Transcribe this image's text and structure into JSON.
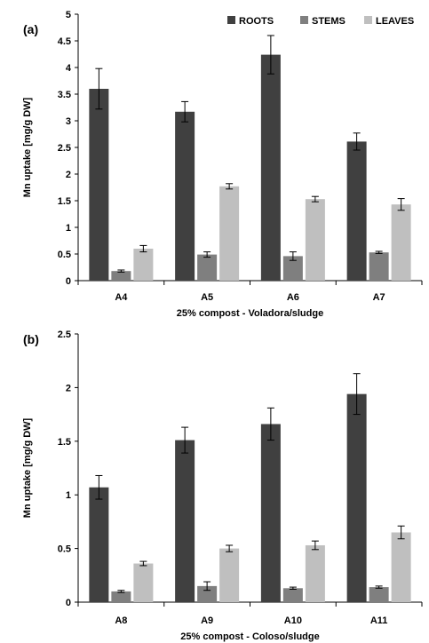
{
  "chart_data": [
    {
      "type": "bar",
      "panel_label": "(a)",
      "categories": [
        "A4",
        "A5",
        "A6",
        "A7"
      ],
      "xlabel": "25% compost - Voladora/sludge",
      "ylabel": "Mn uptake [mg/g DW]",
      "ylim": [
        0,
        5
      ],
      "yticks": [
        "0",
        "0.5",
        "1",
        "1.5",
        "2",
        "2.5",
        "3",
        "3.5",
        "4",
        "4.5",
        "5"
      ],
      "legend_placement": "top-right",
      "grid": false,
      "series": [
        {
          "name": "ROOTS",
          "color": "#404040",
          "values": [
            3.6,
            3.17,
            4.24,
            2.61
          ],
          "errors": [
            0.38,
            0.19,
            0.36,
            0.16
          ]
        },
        {
          "name": "STEMS",
          "color": "#7f7f7f",
          "values": [
            0.18,
            0.49,
            0.46,
            0.53
          ],
          "errors": [
            0.02,
            0.05,
            0.08,
            0.02
          ]
        },
        {
          "name": "LEAVES",
          "color": "#bfbfbf",
          "values": [
            0.6,
            1.77,
            1.53,
            1.43
          ],
          "errors": [
            0.06,
            0.05,
            0.05,
            0.11
          ]
        }
      ]
    },
    {
      "type": "bar",
      "panel_label": "(b)",
      "categories": [
        "A8",
        "A9",
        "A10",
        "A11"
      ],
      "xlabel": "25% compost - Coloso/sludge",
      "ylabel": "Mn uptake [mg/g DW]",
      "ylim": [
        0,
        2.5
      ],
      "yticks": [
        "0",
        "0.5",
        "1",
        "1.5",
        "2",
        "2.5"
      ],
      "grid": false,
      "series": [
        {
          "name": "ROOTS",
          "color": "#404040",
          "values": [
            1.07,
            1.51,
            1.66,
            1.94
          ],
          "errors": [
            0.11,
            0.12,
            0.15,
            0.19
          ]
        },
        {
          "name": "STEMS",
          "color": "#7f7f7f",
          "values": [
            0.1,
            0.15,
            0.13,
            0.14
          ],
          "errors": [
            0.01,
            0.04,
            0.01,
            0.01
          ]
        },
        {
          "name": "LEAVES",
          "color": "#bfbfbf",
          "values": [
            0.36,
            0.5,
            0.53,
            0.65
          ],
          "errors": [
            0.02,
            0.03,
            0.04,
            0.06
          ]
        }
      ]
    }
  ]
}
